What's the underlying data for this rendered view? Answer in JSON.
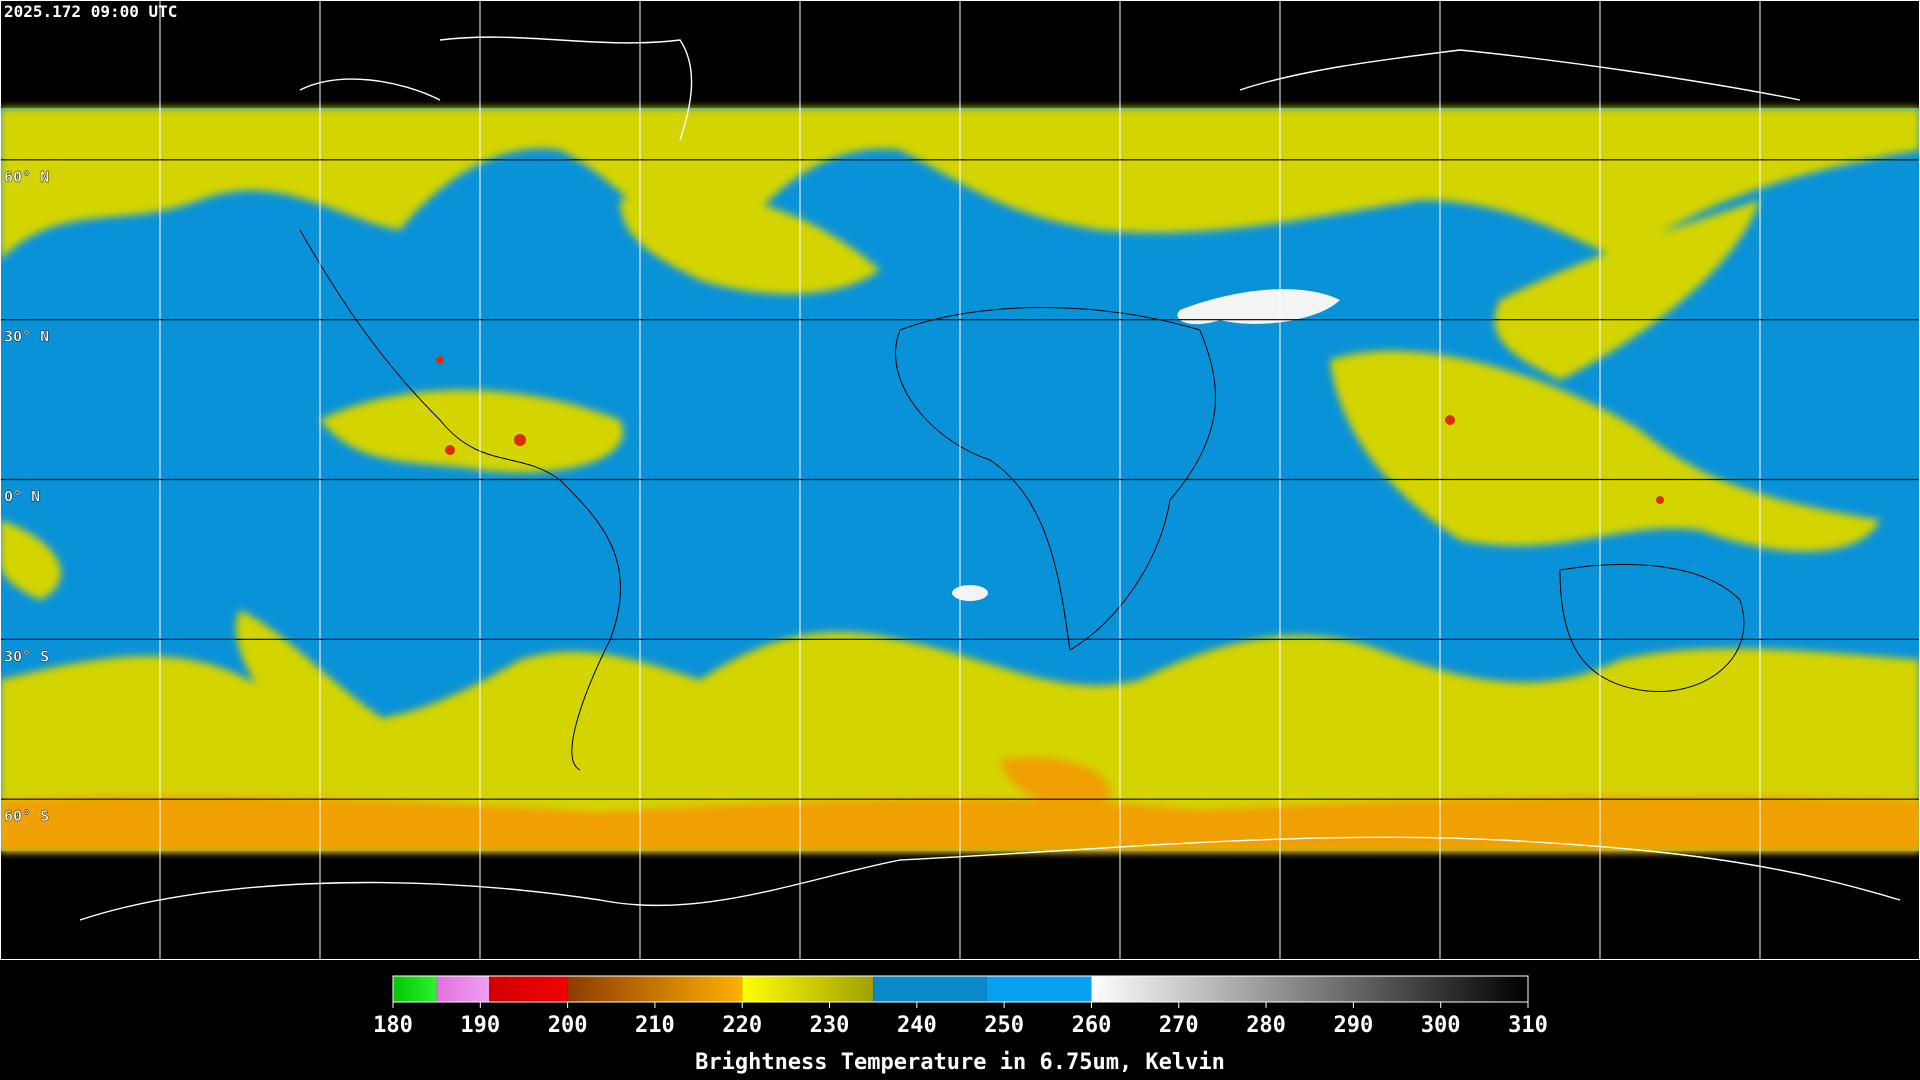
{
  "timestamp": "2025.172 09:00 UTC",
  "latitudes": [
    {
      "value": 60,
      "label": "60° N"
    },
    {
      "value": 30,
      "label": "30° N"
    },
    {
      "value": 0,
      "label": "0° N"
    },
    {
      "value": -30,
      "label": "30° S"
    },
    {
      "value": -60,
      "label": "60° S"
    }
  ],
  "colorbar": {
    "range": [
      180,
      310
    ],
    "ticks": [
      180,
      190,
      200,
      210,
      220,
      230,
      240,
      250,
      260,
      270,
      280,
      290,
      300,
      310
    ],
    "segments": [
      {
        "from": 180,
        "to": 185,
        "colors": [
          "#00c800",
          "#30f030"
        ]
      },
      {
        "from": 185,
        "to": 191,
        "colors": [
          "#e070e0",
          "#f0a0f0"
        ]
      },
      {
        "from": 191,
        "to": 200,
        "colors": [
          "#d00000",
          "#f00000"
        ]
      },
      {
        "from": 200,
        "to": 220,
        "colors": [
          "#8c3c00",
          "#ffb000"
        ]
      },
      {
        "from": 220,
        "to": 235,
        "colors": [
          "#ffff00",
          "#a0a000"
        ]
      },
      {
        "from": 235,
        "to": 248,
        "colors": [
          "#0a88c8",
          "#0a88c8"
        ]
      },
      {
        "from": 248,
        "to": 260,
        "colors": [
          "#0a9ff0",
          "#0a9ff0"
        ]
      },
      {
        "from": 260,
        "to": 310,
        "colors": [
          "#ffffff",
          "#000000"
        ]
      }
    ],
    "label": "Brightness Temperature in 6.75um, Kelvin"
  }
}
